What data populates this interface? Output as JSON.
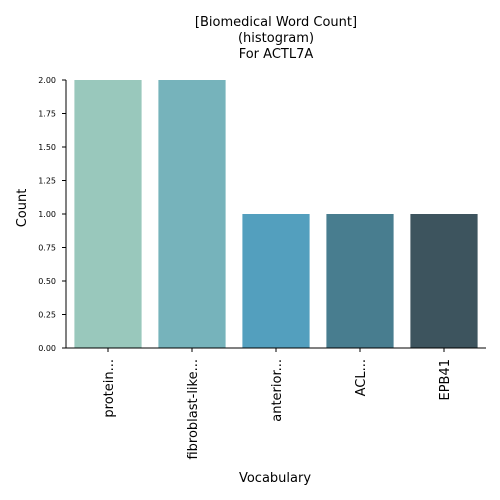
{
  "chart_data": {
    "type": "bar",
    "title_lines": [
      "[Biomedical Word Count]",
      "(histogram)",
      "For ACTL7A"
    ],
    "categories": [
      "protein...",
      "fibroblast-like...",
      "anterior...",
      "ACL...",
      "EPB41"
    ],
    "values": [
      2,
      2,
      1,
      1,
      1
    ],
    "colors": [
      "#99c8bc",
      "#76b3bb",
      "#539fbe",
      "#487d8f",
      "#3d545e"
    ],
    "xlabel": "Vocabulary",
    "ylabel": "Count",
    "ylim": [
      0,
      2.0
    ],
    "yticks": [
      "0.00",
      "0.25",
      "0.50",
      "0.75",
      "1.00",
      "1.25",
      "1.50",
      "1.75",
      "2.00"
    ],
    "grid": false,
    "legend": "none"
  }
}
